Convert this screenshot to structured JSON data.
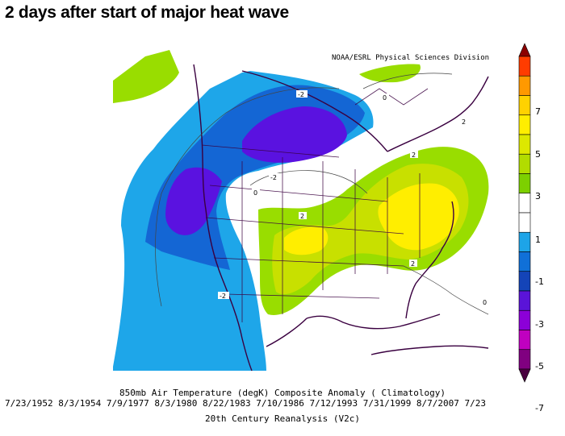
{
  "title": "2 days after start of major heat wave",
  "credit": "NOAA/ESRL Physical Sciences Division",
  "caption": {
    "line1": "850mb Air Temperature (degK) Composite Anomaly ( Climatology)",
    "line2": "7/23/1952 8/3/1954 7/9/1977 8/3/1980 8/22/1983 7/10/1986 7/12/1993 7/31/1999 8/7/2007 7/23",
    "line3": "20th Century Reanalysis (V2c)"
  },
  "colorbar": {
    "labels": [
      "7",
      "5",
      "3",
      "1",
      "-1",
      "-3",
      "-5",
      "-7"
    ],
    "colors": [
      "#8b0000",
      "#ff3c00",
      "#ff9900",
      "#ffd200",
      "#ffee00",
      "#dde800",
      "#b2dc00",
      "#7dd000",
      "#ffffff",
      "#ffffff",
      "#1da4e8",
      "#1070d8",
      "#1444b8",
      "#5a14d8",
      "#8c00d8",
      "#c000c0",
      "#800080",
      "#4a0040"
    ]
  },
  "contour_labels": [
    "-2",
    "0",
    "-2",
    "2",
    "2",
    "2",
    "-2",
    "0",
    "0",
    "2"
  ],
  "colors": {
    "green": "#99dd00",
    "yellow_green": "#c8e000",
    "yellow": "#ffee00",
    "light_blue": "#1ea6e9",
    "blue": "#1466d4",
    "purple": "#5a12e0"
  }
}
